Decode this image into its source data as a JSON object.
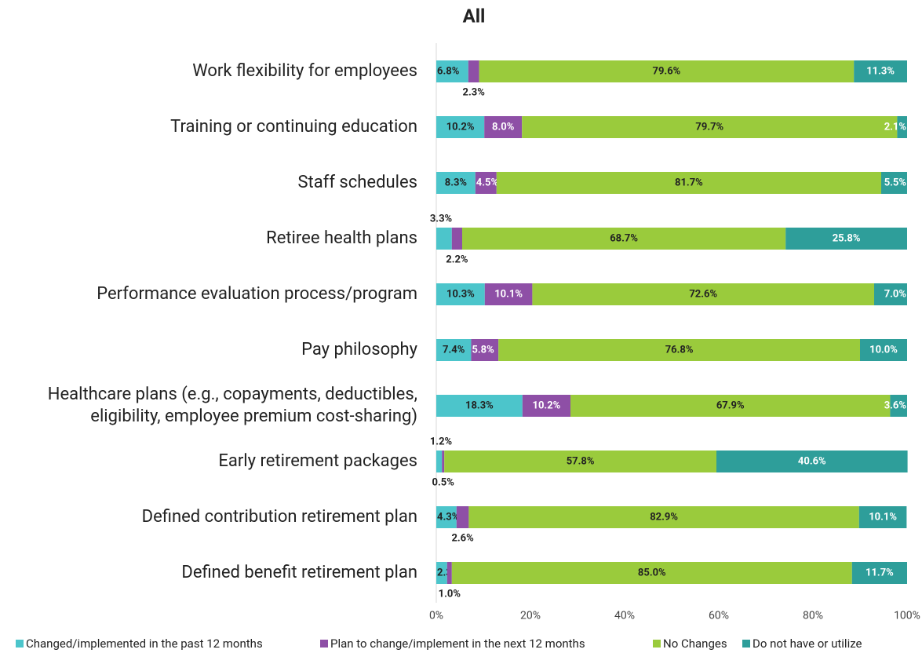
{
  "chart_data": {
    "type": "stacked-barh",
    "title": "All",
    "categories": [
      "Work flexibility for employees",
      "Training or continuing education",
      "Staff schedules",
      "Retiree health plans",
      "Performance evaluation process/program",
      "Pay philosophy",
      "Healthcare plans (e.g., copayments, deductibles,\neligibility, employee premium cost-sharing)",
      "Early retirement packages",
      "Defined contribution retirement plan",
      "Defined benefit retirement plan"
    ],
    "series": [
      {
        "name": "Changed/implemented in the past 12 months",
        "color": "#4cc5cb",
        "values": [
          6.8,
          10.2,
          8.3,
          3.3,
          10.3,
          7.4,
          18.3,
          1.2,
          4.3,
          2.3
        ],
        "value_labels": [
          "6.8%",
          "10.2%",
          "8.3%",
          "3.3%",
          "10.3%",
          "7.4%",
          "18.3%",
          "1.2%",
          "4.3%",
          "2.3%"
        ]
      },
      {
        "name": "Plan to change/implement in the next 12 months",
        "color": "#8e4fa6",
        "values": [
          2.3,
          8.0,
          4.5,
          2.2,
          10.1,
          5.8,
          10.2,
          0.5,
          2.6,
          1.0
        ],
        "value_labels": [
          "2.3%",
          "8.0%",
          "4.5%",
          "2.2%",
          "10.1%",
          "5.8%",
          "10.2%",
          "0.5%",
          "2.6%",
          "1.0%"
        ]
      },
      {
        "name": "No Changes",
        "color": "#9acb3c",
        "values": [
          79.6,
          79.7,
          81.7,
          68.7,
          72.6,
          76.8,
          67.9,
          57.8,
          82.9,
          85.0
        ],
        "value_labels": [
          "79.6%",
          "79.7%",
          "81.7%",
          "68.7%",
          "72.6%",
          "76.8%",
          "67.9%",
          "57.8%",
          "82.9%",
          "85.0%"
        ]
      },
      {
        "name": "Do not have or utilize",
        "color": "#2e9e9a",
        "values": [
          11.3,
          2.1,
          5.5,
          25.8,
          7.0,
          10.0,
          3.6,
          40.6,
          10.1,
          11.7
        ],
        "value_labels": [
          "11.3%",
          "2.1%",
          "5.5%",
          "25.8%",
          "7.0%",
          "10.0%",
          "3.6%",
          "40.6%",
          "10.1%",
          "11.7%"
        ]
      }
    ],
    "xlim": [
      0,
      100
    ],
    "xticks": [
      {
        "value": 0,
        "label": "0%"
      },
      {
        "value": 20,
        "label": "20%"
      },
      {
        "value": 40,
        "label": "40%"
      },
      {
        "value": 60,
        "label": "60%"
      },
      {
        "value": 80,
        "label": "80%"
      },
      {
        "value": 100,
        "label": "100%"
      }
    ],
    "legend": "bottom"
  }
}
